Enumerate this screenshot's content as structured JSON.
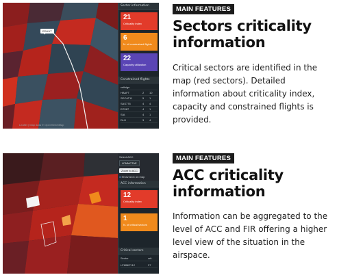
{
  "section1": {
    "badge": "MAIN FEATURES",
    "title_line1": "Sectors criticality",
    "title_line2": "information",
    "description": "Critical sectors are identified in the map (red sectors). Detailed information about criticality index, capacity and constrained flights is provided.",
    "screenshot": {
      "map_tag": "EDUUT",
      "panel_header": "Sector information",
      "cards": [
        {
          "value": "21",
          "label": "Criticality index",
          "color": "#e23b2a"
        },
        {
          "value": "6",
          "label": "N. of constrained flights",
          "color": "#f08a1c"
        },
        {
          "value": "22",
          "label": "Capacity utilization",
          "color": "#5a45b5"
        }
      ],
      "table_header": "Constrained flights",
      "table_cols": [
        "callsign",
        "",
        ""
      ],
      "table_rows": [
        [
          "HBAFT",
          "2",
          "10"
        ],
        [
          "SECAT11",
          "5",
          "1"
        ],
        [
          "SAS776",
          "4",
          "4"
        ],
        [
          "EZS87",
          "4",
          "1"
        ],
        [
          "SIA",
          "4",
          "1"
        ],
        [
          "DLH",
          "3",
          "4"
        ]
      ],
      "attribution": "Leaflet | Map data © OpenStreetMap"
    }
  },
  "section2": {
    "badge": "MAIN FEATURES",
    "title_line1": "ACC criticality",
    "title_line2": "information",
    "description": "Information can be aggregated to the level of ACC and FIR offering a higher level view of the situation in the airspace.",
    "screenshot": {
      "select_label": "Select ACC",
      "select_value": "LFMMCTAE",
      "zoom_button": "Zoom to ACC",
      "checkbox_label": "Show ACC on map",
      "panel_header": "ACC information",
      "cards": [
        {
          "value": "12",
          "label": "Criticality index",
          "color": "#e23b2a"
        },
        {
          "value": "1",
          "label": "N. of critical sectors",
          "color": "#f08a1c"
        }
      ],
      "table_header": "Critical sectors",
      "table_cols": [
        "Sector",
        "crit."
      ],
      "table_rows": [
        [
          "LFMMEY12",
          "37"
        ]
      ]
    }
  },
  "colors": {
    "critical_red": "#e23b2a",
    "orange": "#f08a1c",
    "purple": "#5a45b5",
    "panel_dark": "#1d252b"
  }
}
